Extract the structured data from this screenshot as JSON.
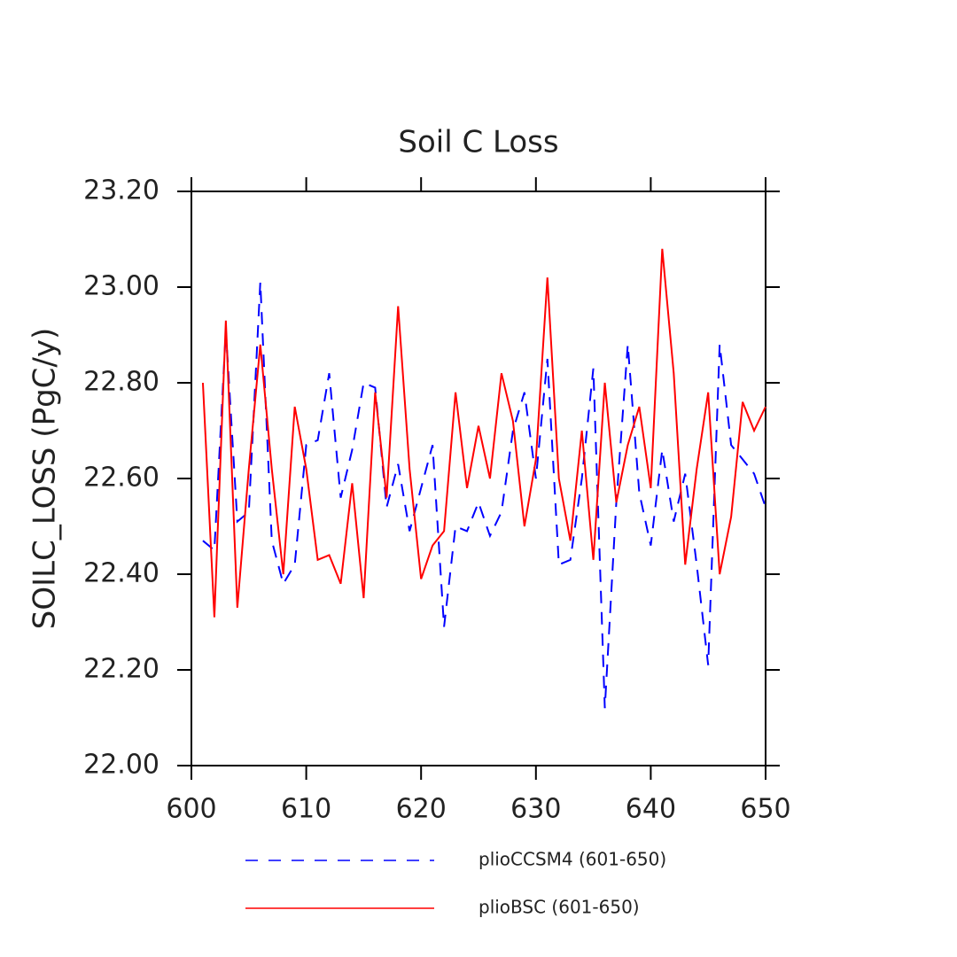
{
  "chart_data": {
    "type": "line",
    "title": "Soil C Loss",
    "ylabel": "SOILC_LOSS  (PgC/y)",
    "x": [
      601,
      602,
      603,
      604,
      605,
      606,
      607,
      608,
      609,
      610,
      611,
      612,
      613,
      614,
      615,
      616,
      617,
      618,
      619,
      620,
      621,
      622,
      623,
      624,
      625,
      626,
      627,
      628,
      629,
      630,
      631,
      632,
      633,
      634,
      635,
      636,
      637,
      638,
      639,
      640,
      641,
      642,
      643,
      644,
      645,
      646,
      647,
      648,
      649,
      650
    ],
    "series": [
      {
        "name": "plioCCSM4 (601-650)",
        "color": "#0000ff",
        "dash": true,
        "values": [
          22.47,
          22.45,
          22.91,
          22.51,
          22.53,
          23.01,
          22.47,
          22.38,
          22.42,
          22.67,
          22.68,
          22.82,
          22.56,
          22.66,
          22.8,
          22.79,
          22.54,
          22.63,
          22.49,
          22.58,
          22.67,
          22.29,
          22.5,
          22.49,
          22.55,
          22.48,
          22.53,
          22.7,
          22.78,
          22.6,
          22.85,
          22.42,
          22.43,
          22.6,
          22.83,
          22.12,
          22.55,
          22.88,
          22.57,
          22.46,
          22.66,
          22.51,
          22.61,
          22.42,
          22.21,
          22.88,
          22.67,
          22.64,
          22.61,
          22.54
        ]
      },
      {
        "name": "plioBSC (601-650)",
        "color": "#ff0000",
        "dash": false,
        "values": [
          22.8,
          22.31,
          22.93,
          22.33,
          22.62,
          22.88,
          22.62,
          22.4,
          22.75,
          22.62,
          22.43,
          22.44,
          22.38,
          22.59,
          22.35,
          22.78,
          22.56,
          22.96,
          22.62,
          22.39,
          22.46,
          22.49,
          22.78,
          22.58,
          22.71,
          22.6,
          22.82,
          22.72,
          22.5,
          22.64,
          23.02,
          22.6,
          22.47,
          22.7,
          22.43,
          22.8,
          22.55,
          22.67,
          22.75,
          22.58,
          23.08,
          22.82,
          22.42,
          22.62,
          22.78,
          22.4,
          22.52,
          22.76,
          22.7,
          22.75
        ]
      }
    ],
    "xlim": [
      600,
      650
    ],
    "xticks": [
      600,
      610,
      620,
      630,
      640,
      650
    ],
    "ylim": [
      22.0,
      23.2
    ],
    "yticks": [
      {
        "value": 22.0,
        "label": "22.00"
      },
      {
        "value": 22.2,
        "label": "22.20"
      },
      {
        "value": 22.4,
        "label": "22.40"
      },
      {
        "value": 22.6,
        "label": "22.60"
      },
      {
        "value": 22.8,
        "label": "22.80"
      },
      {
        "value": 23.0,
        "label": "23.00"
      },
      {
        "value": 23.2,
        "label": "23.20"
      }
    ]
  }
}
